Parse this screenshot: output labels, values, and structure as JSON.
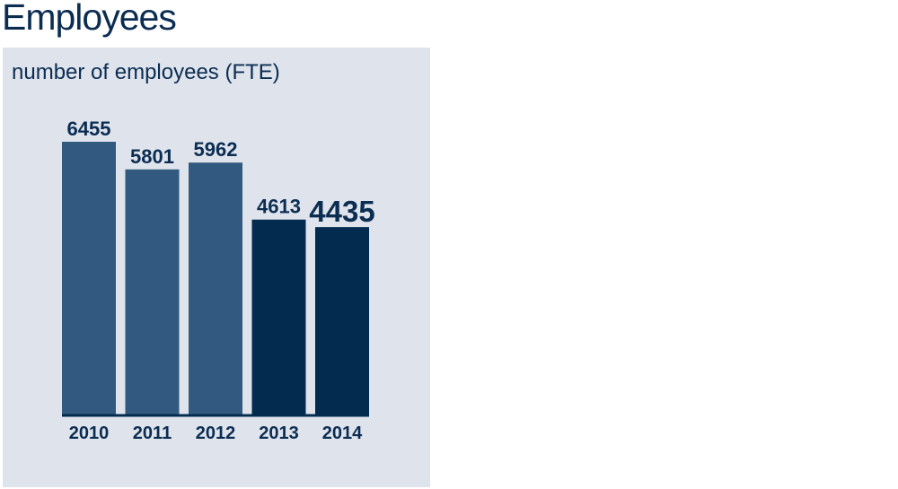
{
  "title": "Employees",
  "chart_data": {
    "type": "bar",
    "title": "Employees",
    "subtitle": "number of employees (FTE)",
    "categories": [
      "2010",
      "2011",
      "2012",
      "2013",
      "2014"
    ],
    "values": [
      6455,
      5801,
      5962,
      4613,
      4435
    ],
    "value_labels": [
      "6455",
      "5801",
      "5962",
      "4613",
      "4435"
    ],
    "ylim": [
      0,
      6455
    ],
    "grid": false,
    "legend": "none",
    "colors": {
      "past": "#325a81",
      "recent": "#032b4f",
      "text": "#0b2d52",
      "panel": "#dfe3ec",
      "axis": "#032b4f"
    },
    "highlight": [
      false,
      false,
      false,
      true,
      true
    ],
    "emphasized_label_index": 4
  }
}
